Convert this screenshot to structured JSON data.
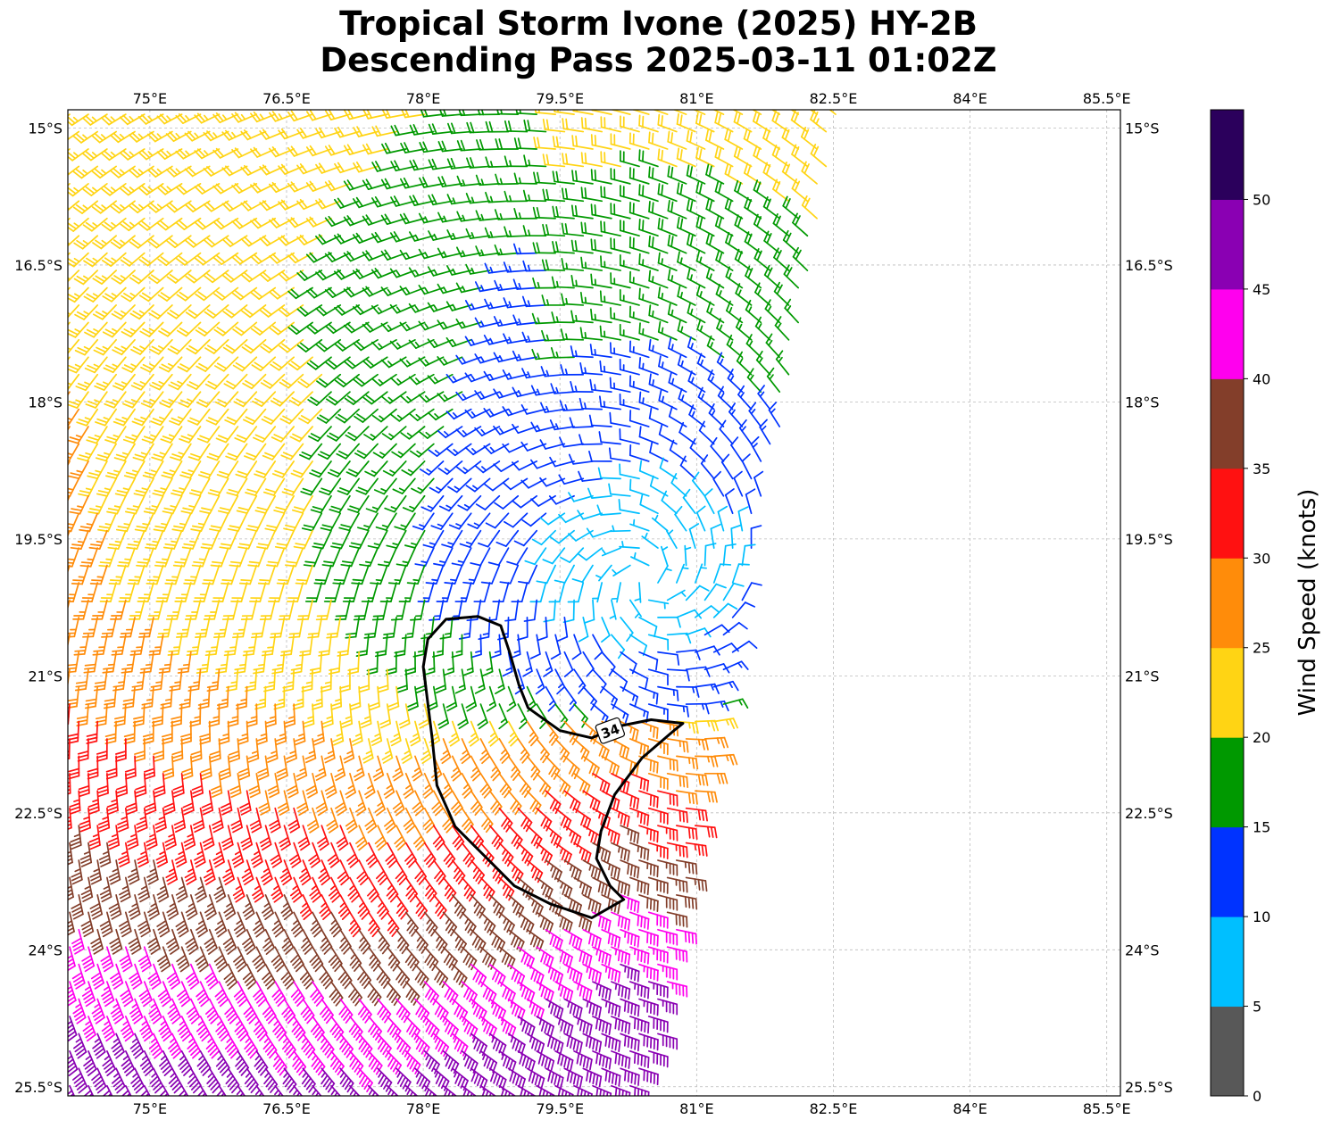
{
  "title": {
    "line1": "Tropical Storm Ivone (2025) HY-2B",
    "line2": "Descending Pass 2025-03-11 01:02Z"
  },
  "map": {
    "lon_range": [
      74.1,
      85.65
    ],
    "lat_range": [
      -25.6,
      -14.8
    ],
    "lon_ticks": [
      75,
      76.5,
      78,
      79.5,
      81,
      82.5,
      84,
      85.5
    ],
    "lon_tick_labels": [
      "75°E",
      "76.5°E",
      "78°E",
      "79.5°E",
      "81°E",
      "82.5°E",
      "84°E",
      "85.5°E"
    ],
    "lat_ticks": [
      -15,
      -16.5,
      -18,
      -19.5,
      -21,
      -22.5,
      -24,
      -25.5
    ],
    "lat_tick_labels": [
      "15°S",
      "16.5°S",
      "18°S",
      "19.5°S",
      "21°S",
      "22.5°S",
      "24°S",
      "25.5°S"
    ],
    "gridlines": true,
    "storm_center": {
      "lon": 80.45,
      "lat": -19.95
    },
    "swath_corners": [
      [
        74.1,
        -14.85
      ],
      [
        82.6,
        -14.85
      ],
      [
        80.45,
        -25.6
      ],
      [
        74.1,
        -25.6
      ]
    ],
    "contour_label": "34",
    "contour_34kt": [
      [
        78.05,
        -20.6
      ],
      [
        78.25,
        -20.38
      ],
      [
        78.6,
        -20.35
      ],
      [
        78.85,
        -20.45
      ],
      [
        78.95,
        -20.75
      ],
      [
        79.05,
        -21.1
      ],
      [
        79.15,
        -21.35
      ],
      [
        79.5,
        -21.6
      ],
      [
        79.85,
        -21.68
      ],
      [
        80.15,
        -21.55
      ],
      [
        80.5,
        -21.48
      ],
      [
        80.85,
        -21.52
      ],
      [
        80.75,
        -21.6
      ],
      [
        80.4,
        -21.9
      ],
      [
        80.1,
        -22.3
      ],
      [
        79.95,
        -22.7
      ],
      [
        79.9,
        -23.0
      ],
      [
        80.05,
        -23.3
      ],
      [
        80.2,
        -23.45
      ],
      [
        79.85,
        -23.65
      ],
      [
        79.4,
        -23.5
      ],
      [
        79.0,
        -23.3
      ],
      [
        78.7,
        -23.0
      ],
      [
        78.35,
        -22.65
      ],
      [
        78.15,
        -22.2
      ],
      [
        78.1,
        -21.7
      ],
      [
        78.05,
        -21.3
      ],
      [
        78.0,
        -20.9
      ]
    ]
  },
  "colorbar": {
    "label": "Wind Speed (knots)",
    "bins": [
      0,
      5,
      10,
      15,
      20,
      25,
      30,
      35,
      40,
      45,
      50,
      55
    ],
    "colors": [
      "#585858",
      "#00bfff",
      "#0033ff",
      "#009900",
      "#ffd414",
      "#ff8c0a",
      "#ff1111",
      "#833e2a",
      "#ff00ee",
      "#8a00b3",
      "#2b005c"
    ],
    "tick_values": [
      0,
      5,
      10,
      15,
      20,
      25,
      30,
      35,
      40,
      45,
      50
    ],
    "tick_labels": [
      "0",
      "5",
      "10",
      "15",
      "20",
      "25",
      "30",
      "35",
      "40",
      "45",
      "50"
    ]
  }
}
